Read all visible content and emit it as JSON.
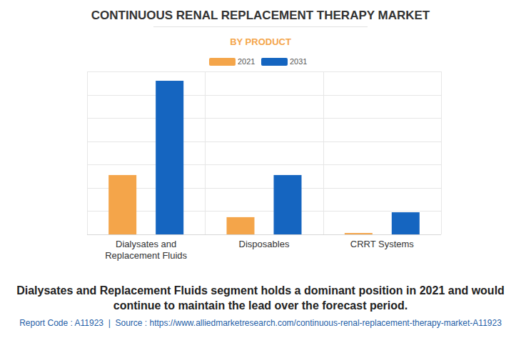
{
  "chart_data": {
    "type": "bar",
    "title": "CONTINUOUS RENAL REPLACEMENT THERAPY MARKET",
    "subtitle": "BY PRODUCT",
    "categories": [
      "Dialysates and Replacement Fluids",
      "Disposables",
      "CRRT Systems"
    ],
    "series": [
      {
        "name": "2021",
        "color": "#f4a54a",
        "values": [
          2.55,
          0.74,
          0.06
        ]
      },
      {
        "name": "2031",
        "color": "#1565c0",
        "values": [
          6.6,
          2.55,
          0.95
        ]
      }
    ],
    "ylim": [
      0,
      7
    ],
    "yticks": [
      0,
      1,
      2,
      3,
      4,
      5,
      6,
      7
    ],
    "grid": true,
    "legend": "top",
    "tick_labels": "x",
    "annotation": "Dialysates and Replacement Fluids segment holds a dominant position in 2021 and would continue to maintain the lead over the forecast period.",
    "source": "Report Code : A11923  |  Source : https://www.alliedmarketresearch.com/continuous-renal-replacement-therapy-market-A11923"
  }
}
